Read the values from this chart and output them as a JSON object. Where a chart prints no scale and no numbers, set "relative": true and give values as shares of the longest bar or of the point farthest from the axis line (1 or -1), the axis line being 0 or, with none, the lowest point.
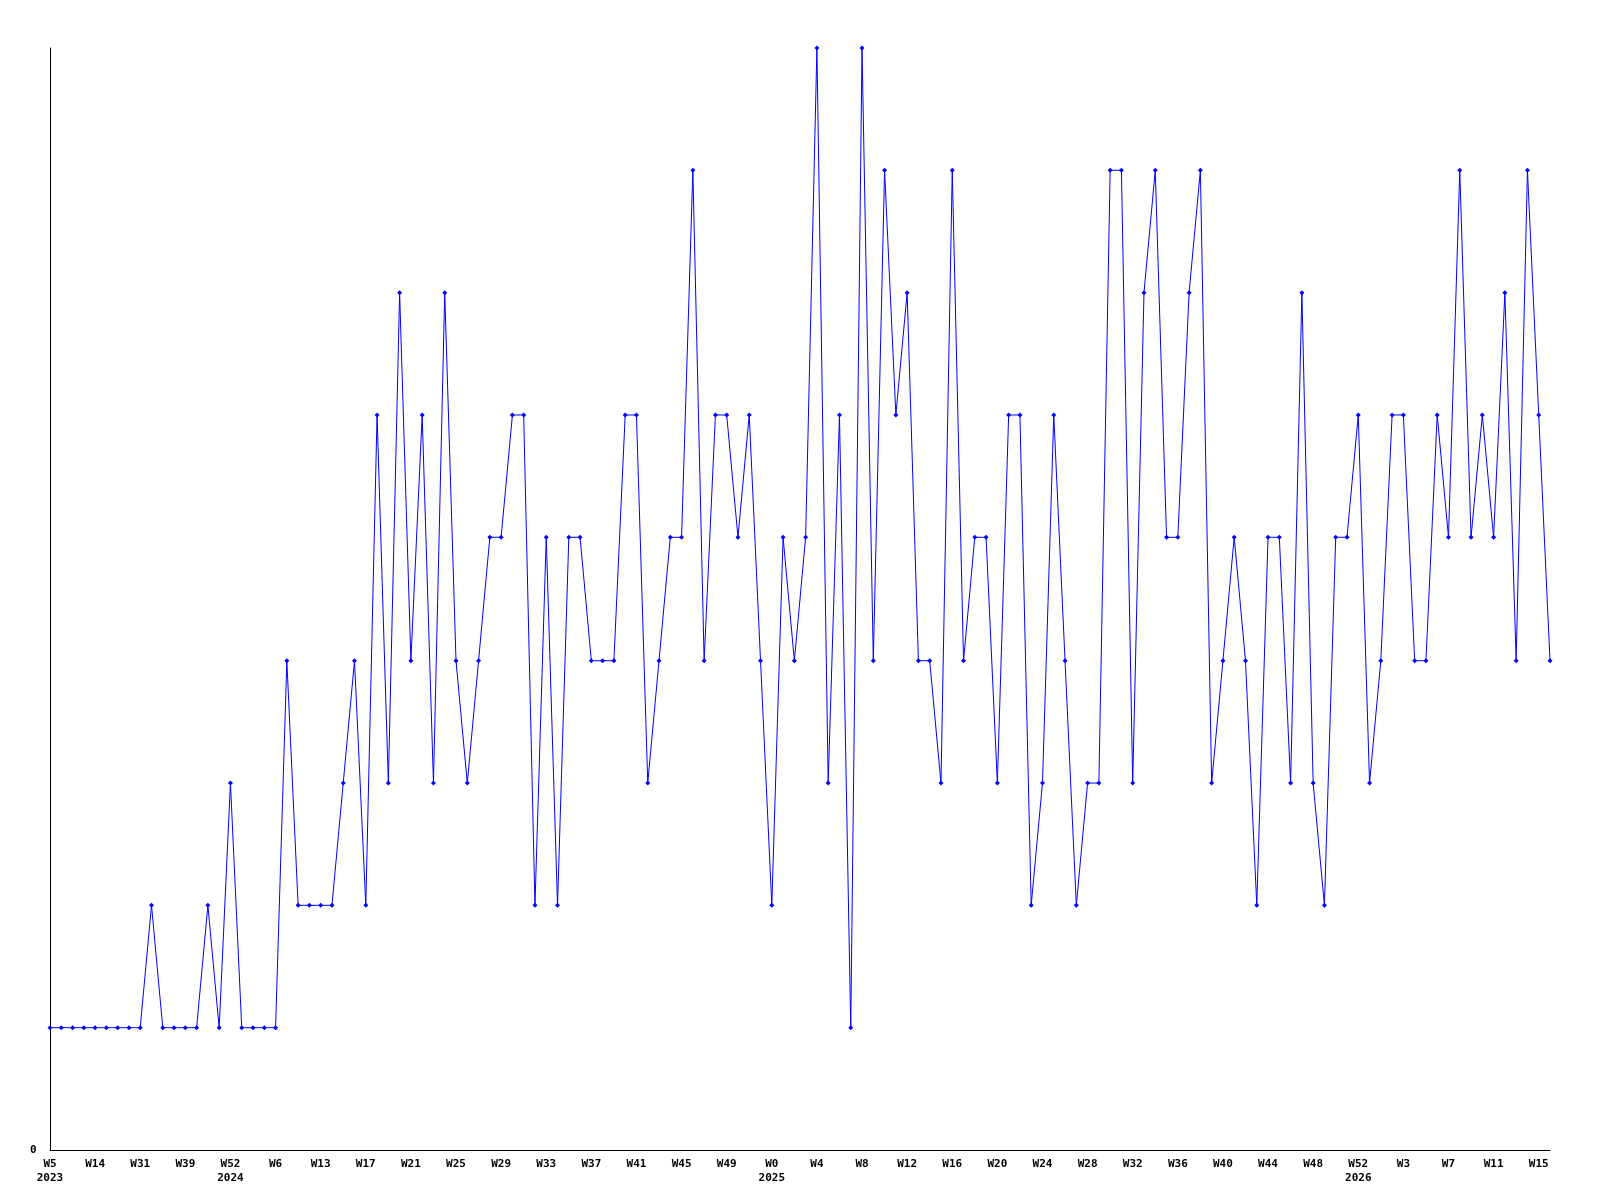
{
  "chart_data": {
    "type": "line",
    "relative": true,
    "marker": "diamond",
    "line_style": "solid",
    "annotations": [
      "0"
    ],
    "categories": [
      "W5\n2023",
      null,
      null,
      null,
      "W14",
      null,
      null,
      null,
      "W31",
      null,
      null,
      null,
      "W39",
      null,
      null,
      null,
      "W52\n2024",
      null,
      null,
      null,
      "W6",
      null,
      null,
      null,
      "W13",
      null,
      null,
      null,
      "W17",
      null,
      null,
      null,
      "W21",
      null,
      null,
      null,
      "W25",
      null,
      null,
      null,
      "W29",
      null,
      null,
      null,
      "W33",
      null,
      null,
      null,
      "W37",
      null,
      null,
      null,
      "W41",
      null,
      null,
      null,
      "W45",
      null,
      null,
      null,
      "W49",
      null,
      null,
      null,
      "W0\n2025",
      null,
      null,
      null,
      "W4",
      null,
      null,
      null,
      "W8",
      null,
      null,
      null,
      "W12",
      null,
      null,
      null,
      "W16",
      null,
      null,
      null,
      "W20",
      null,
      null,
      null,
      "W24",
      null,
      null,
      null,
      "W28",
      null,
      null,
      null,
      "W32",
      null,
      null,
      null,
      "W36",
      null,
      null,
      null,
      "W40",
      null,
      null,
      null,
      "W44",
      null,
      null,
      null,
      "W48",
      null,
      null,
      null,
      "W52\n2026",
      null,
      null,
      null,
      "W3",
      null,
      null,
      null,
      "W7",
      null,
      null,
      null,
      "W11",
      null,
      null,
      null,
      "W15",
      null
    ],
    "series": [
      {
        "color": "#0000ff",
        "values": [
          0.111,
          0.111,
          0.111,
          0.111,
          0.111,
          0.111,
          0.111,
          0.111,
          0.111,
          0.222,
          0.111,
          0.111,
          0.111,
          0.111,
          0.222,
          0.111,
          0.333,
          0.111,
          0.111,
          0.111,
          0.111,
          0.444,
          0.222,
          0.222,
          0.222,
          0.222,
          0.333,
          0.444,
          0.222,
          0.667,
          0.333,
          0.778,
          0.444,
          0.667,
          0.333,
          0.778,
          0.444,
          0.333,
          0.444,
          0.556,
          0.556,
          0.667,
          0.667,
          0.222,
          0.556,
          0.222,
          0.556,
          0.556,
          0.444,
          0.444,
          0.444,
          0.667,
          0.667,
          0.333,
          0.444,
          0.556,
          0.556,
          0.889,
          0.444,
          0.667,
          0.667,
          0.556,
          0.667,
          0.444,
          0.222,
          0.556,
          0.444,
          0.556,
          1,
          0.333,
          0.667,
          0.111,
          1,
          0.444,
          0.889,
          0.667,
          0.778,
          0.444,
          0.444,
          0.333,
          0.889,
          0.444,
          0.556,
          0.556,
          0.333,
          0.667,
          0.667,
          0.222,
          0.333,
          0.667,
          0.444,
          0.222,
          0.333,
          0.333,
          0.889,
          0.889,
          0.333,
          0.778,
          0.889,
          0.556,
          0.556,
          0.778,
          0.889,
          0.333,
          0.444,
          0.556,
          0.444,
          0.222,
          0.556,
          0.556,
          0.333,
          0.778,
          0.333,
          0.222,
          0.556,
          0.556,
          0.667,
          0.333,
          0.444,
          0.667,
          0.667,
          0.444,
          0.444,
          0.667,
          0.556,
          0.889,
          0.556,
          0.667,
          0.556,
          0.778,
          0.444,
          0.889,
          0.667,
          0.444
        ]
      }
    ]
  }
}
